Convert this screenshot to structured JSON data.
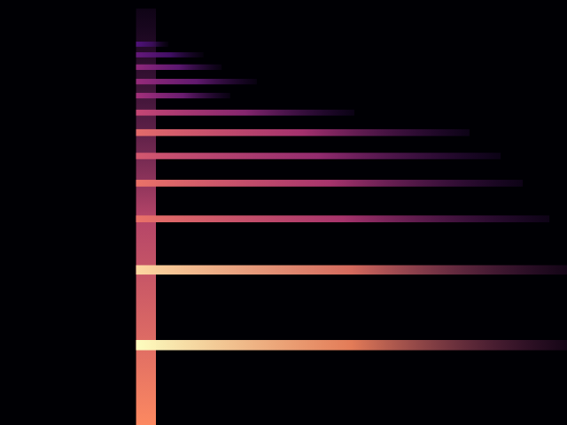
{
  "chart_data": {
    "type": "spectrogram",
    "tick_labels": false,
    "xlim": [
      0,
      100
    ],
    "ylim": [
      0,
      100
    ],
    "zlim": [
      0,
      1
    ],
    "onset": {
      "start": 24,
      "end": 27.5,
      "top": 98,
      "intensity": 0.75
    },
    "harmonics": [
      {
        "y": 18.8,
        "bandwidth": 2.4,
        "start": 24,
        "end": 100,
        "intensity": 1.0
      },
      {
        "y": 36.5,
        "bandwidth": 2.2,
        "start": 24,
        "end": 100,
        "intensity": 0.92
      },
      {
        "y": 48.5,
        "bandwidth": 1.6,
        "start": 24,
        "end": 96.9,
        "intensity": 0.68
      },
      {
        "y": 56.9,
        "bandwidth": 1.6,
        "start": 24,
        "end": 92.2,
        "intensity": 0.68
      },
      {
        "y": 63.3,
        "bandwidth": 1.5,
        "start": 24,
        "end": 88.3,
        "intensity": 0.6
      },
      {
        "y": 68.8,
        "bandwidth": 1.6,
        "start": 24,
        "end": 82.8,
        "intensity": 0.66
      },
      {
        "y": 73.5,
        "bandwidth": 1.4,
        "start": 24,
        "end": 62.5,
        "intensity": 0.55
      },
      {
        "y": 77.5,
        "bandwidth": 1.3,
        "start": 24,
        "end": 40.6,
        "intensity": 0.45
      },
      {
        "y": 80.8,
        "bandwidth": 1.3,
        "start": 24,
        "end": 45.3,
        "intensity": 0.42
      },
      {
        "y": 84.2,
        "bandwidth": 1.3,
        "start": 24,
        "end": 39.1,
        "intensity": 0.4
      },
      {
        "y": 87.1,
        "bandwidth": 1.2,
        "start": 24,
        "end": 35.9,
        "intensity": 0.3
      },
      {
        "y": 89.6,
        "bandwidth": 1.2,
        "start": 24,
        "end": 29.7,
        "intensity": 0.25
      }
    ]
  }
}
